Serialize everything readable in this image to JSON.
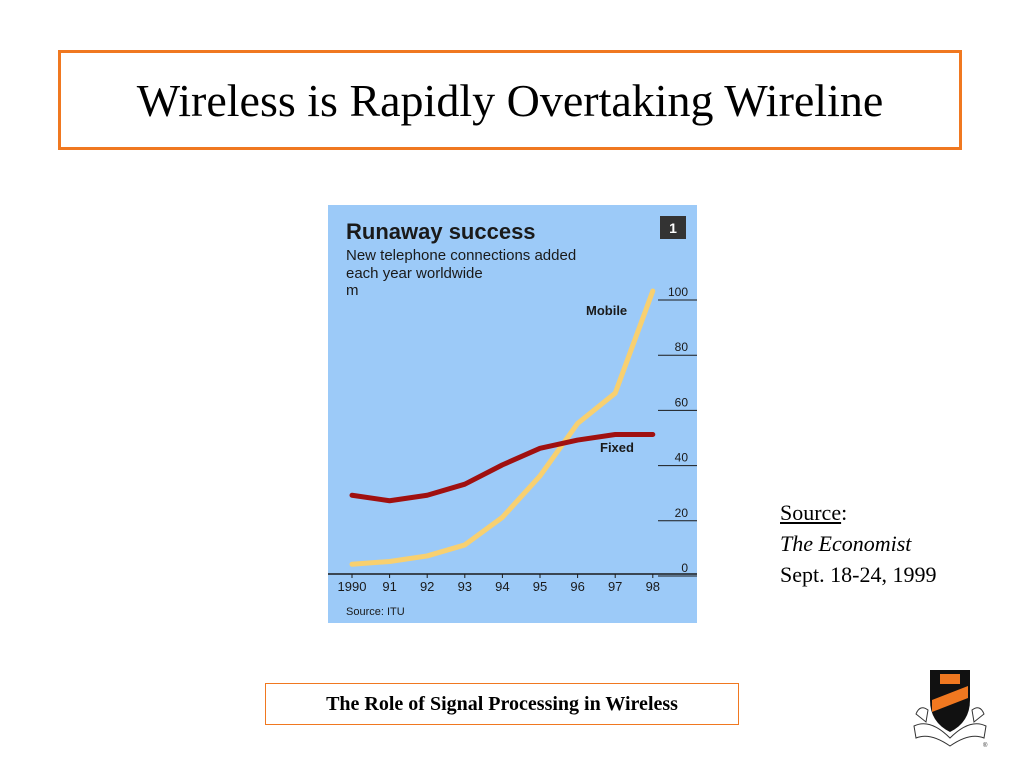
{
  "slide": {
    "title": "Wireless is Rapidly Overtaking Wireline",
    "source_label": "Source",
    "source_colon": ":",
    "source_publication": "The Economist",
    "source_date": "Sept. 18-24, 1999",
    "footer": "The Role of Signal Processing in Wireless",
    "logo_lettering": [
      "DEI",
      "SUB",
      "NUMINE",
      "VIGET"
    ],
    "logo_registered": "®"
  },
  "colors": {
    "accent": "#f07820",
    "chart_bg": "#9ccaf8",
    "mobile": "#f8d070",
    "fixed": "#a01010",
    "badge": "#333333"
  },
  "chart_data": {
    "type": "line",
    "title": "Runaway success",
    "subtitle_lines": [
      "New telephone connections added",
      "each year worldwide",
      "m"
    ],
    "badge": "1",
    "source": "Source: ITU",
    "x": [
      "1990",
      "91",
      "92",
      "93",
      "94",
      "95",
      "96",
      "97",
      "98"
    ],
    "ylim": [
      0,
      100
    ],
    "yticks": [
      "0",
      "20",
      "40",
      "60",
      "80",
      "100"
    ],
    "grid": false,
    "series": [
      {
        "name": "Mobile",
        "values": [
          1,
          2,
          4,
          8,
          18,
          33,
          52,
          63,
          100
        ]
      },
      {
        "name": "Fixed",
        "values": [
          26,
          24,
          26,
          30,
          37,
          43,
          46,
          48,
          48
        ]
      }
    ]
  }
}
